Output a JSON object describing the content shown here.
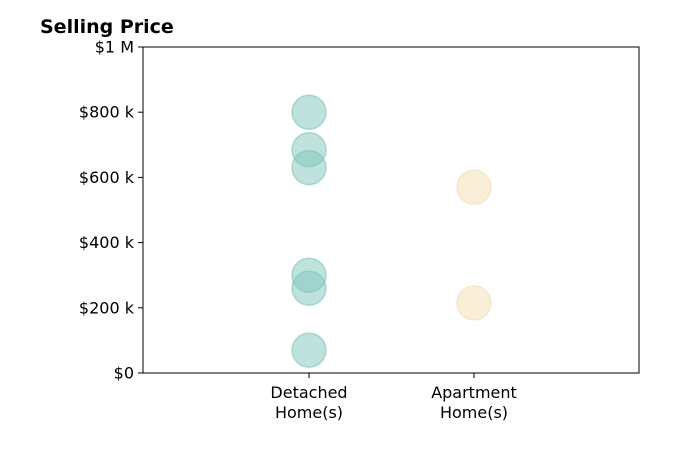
{
  "chart_data": {
    "type": "scatter",
    "title": "Selling Price",
    "xlabel": "",
    "ylabel": "",
    "categories": [
      {
        "label_lines": [
          "Detached",
          "Home(s)"
        ]
      },
      {
        "label_lines": [
          "Apartment",
          "Home(s)"
        ]
      }
    ],
    "ylim": [
      0,
      1000000
    ],
    "y_ticks": [
      {
        "value": 0,
        "label": "$0"
      },
      {
        "value": 200000,
        "label": "$200 k"
      },
      {
        "value": 400000,
        "label": "$400 k"
      },
      {
        "value": 600000,
        "label": "$600 k"
      },
      {
        "value": 800000,
        "label": "$800 k"
      },
      {
        "value": 1000000,
        "label": "$1 M"
      }
    ],
    "series": [
      {
        "category_index": 0,
        "color": "#7fc6bc",
        "values": [
          800000,
          685000,
          630000,
          300000,
          260000,
          70000
        ]
      },
      {
        "category_index": 1,
        "color": "#f3deb0",
        "values": [
          570000,
          215000
        ]
      }
    ],
    "grid": false,
    "legend": "none"
  }
}
